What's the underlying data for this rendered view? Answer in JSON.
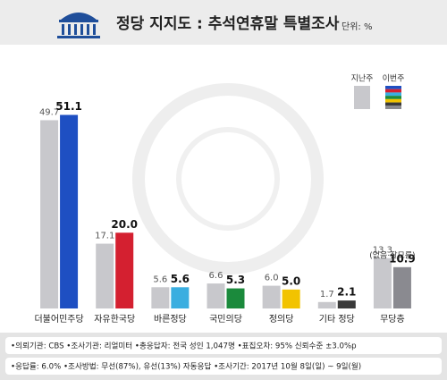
{
  "chart_data": {
    "type": "bar",
    "title": "정당 지지도 : 추석연휴말 특별조사",
    "unit": "단위: %",
    "categories": [
      "더불어민주당",
      "자유한국당",
      "바른정당",
      "국민의당",
      "정의당",
      "기타 정당",
      "무당층"
    ],
    "category_note": {
      "index": 6,
      "text": "(없음·잘모름)"
    },
    "series": [
      {
        "name": "지난주",
        "color": "#c8c8cc",
        "values": [
          49.7,
          17.1,
          5.6,
          6.6,
          6.0,
          1.7,
          13.3
        ],
        "value_labels": [
          "49.7",
          "17.1",
          "5.6",
          "6.6",
          "6.0",
          "1.7",
          "13.3"
        ]
      },
      {
        "name": "이번주",
        "colors": [
          "#1e4fc2",
          "#d42030",
          "#3aaee0",
          "#1b8a3c",
          "#f2c300",
          "#3a3a3a",
          "#8a8a90"
        ],
        "values": [
          51.1,
          20.0,
          5.6,
          5.3,
          5.0,
          2.1,
          10.9
        ],
        "value_labels": [
          "51.1",
          "20.0",
          "5.6",
          "5.3",
          "5.0",
          "2.1",
          "10.9"
        ]
      }
    ],
    "ylim": [
      0,
      55
    ],
    "footer": [
      "•의뢰기관: CBS  •조사기관: 리얼미터  •총응답자: 전국 성인 1,047명  •표집오차: 95% 신뢰수준 ±3.0%p",
      "•응답률: 6.0%  •조사방법: 무선(87%), 유선(13%) 자동응답  •조사기간: 2017년 10월 8일(일) ~ 9일(월)"
    ]
  }
}
